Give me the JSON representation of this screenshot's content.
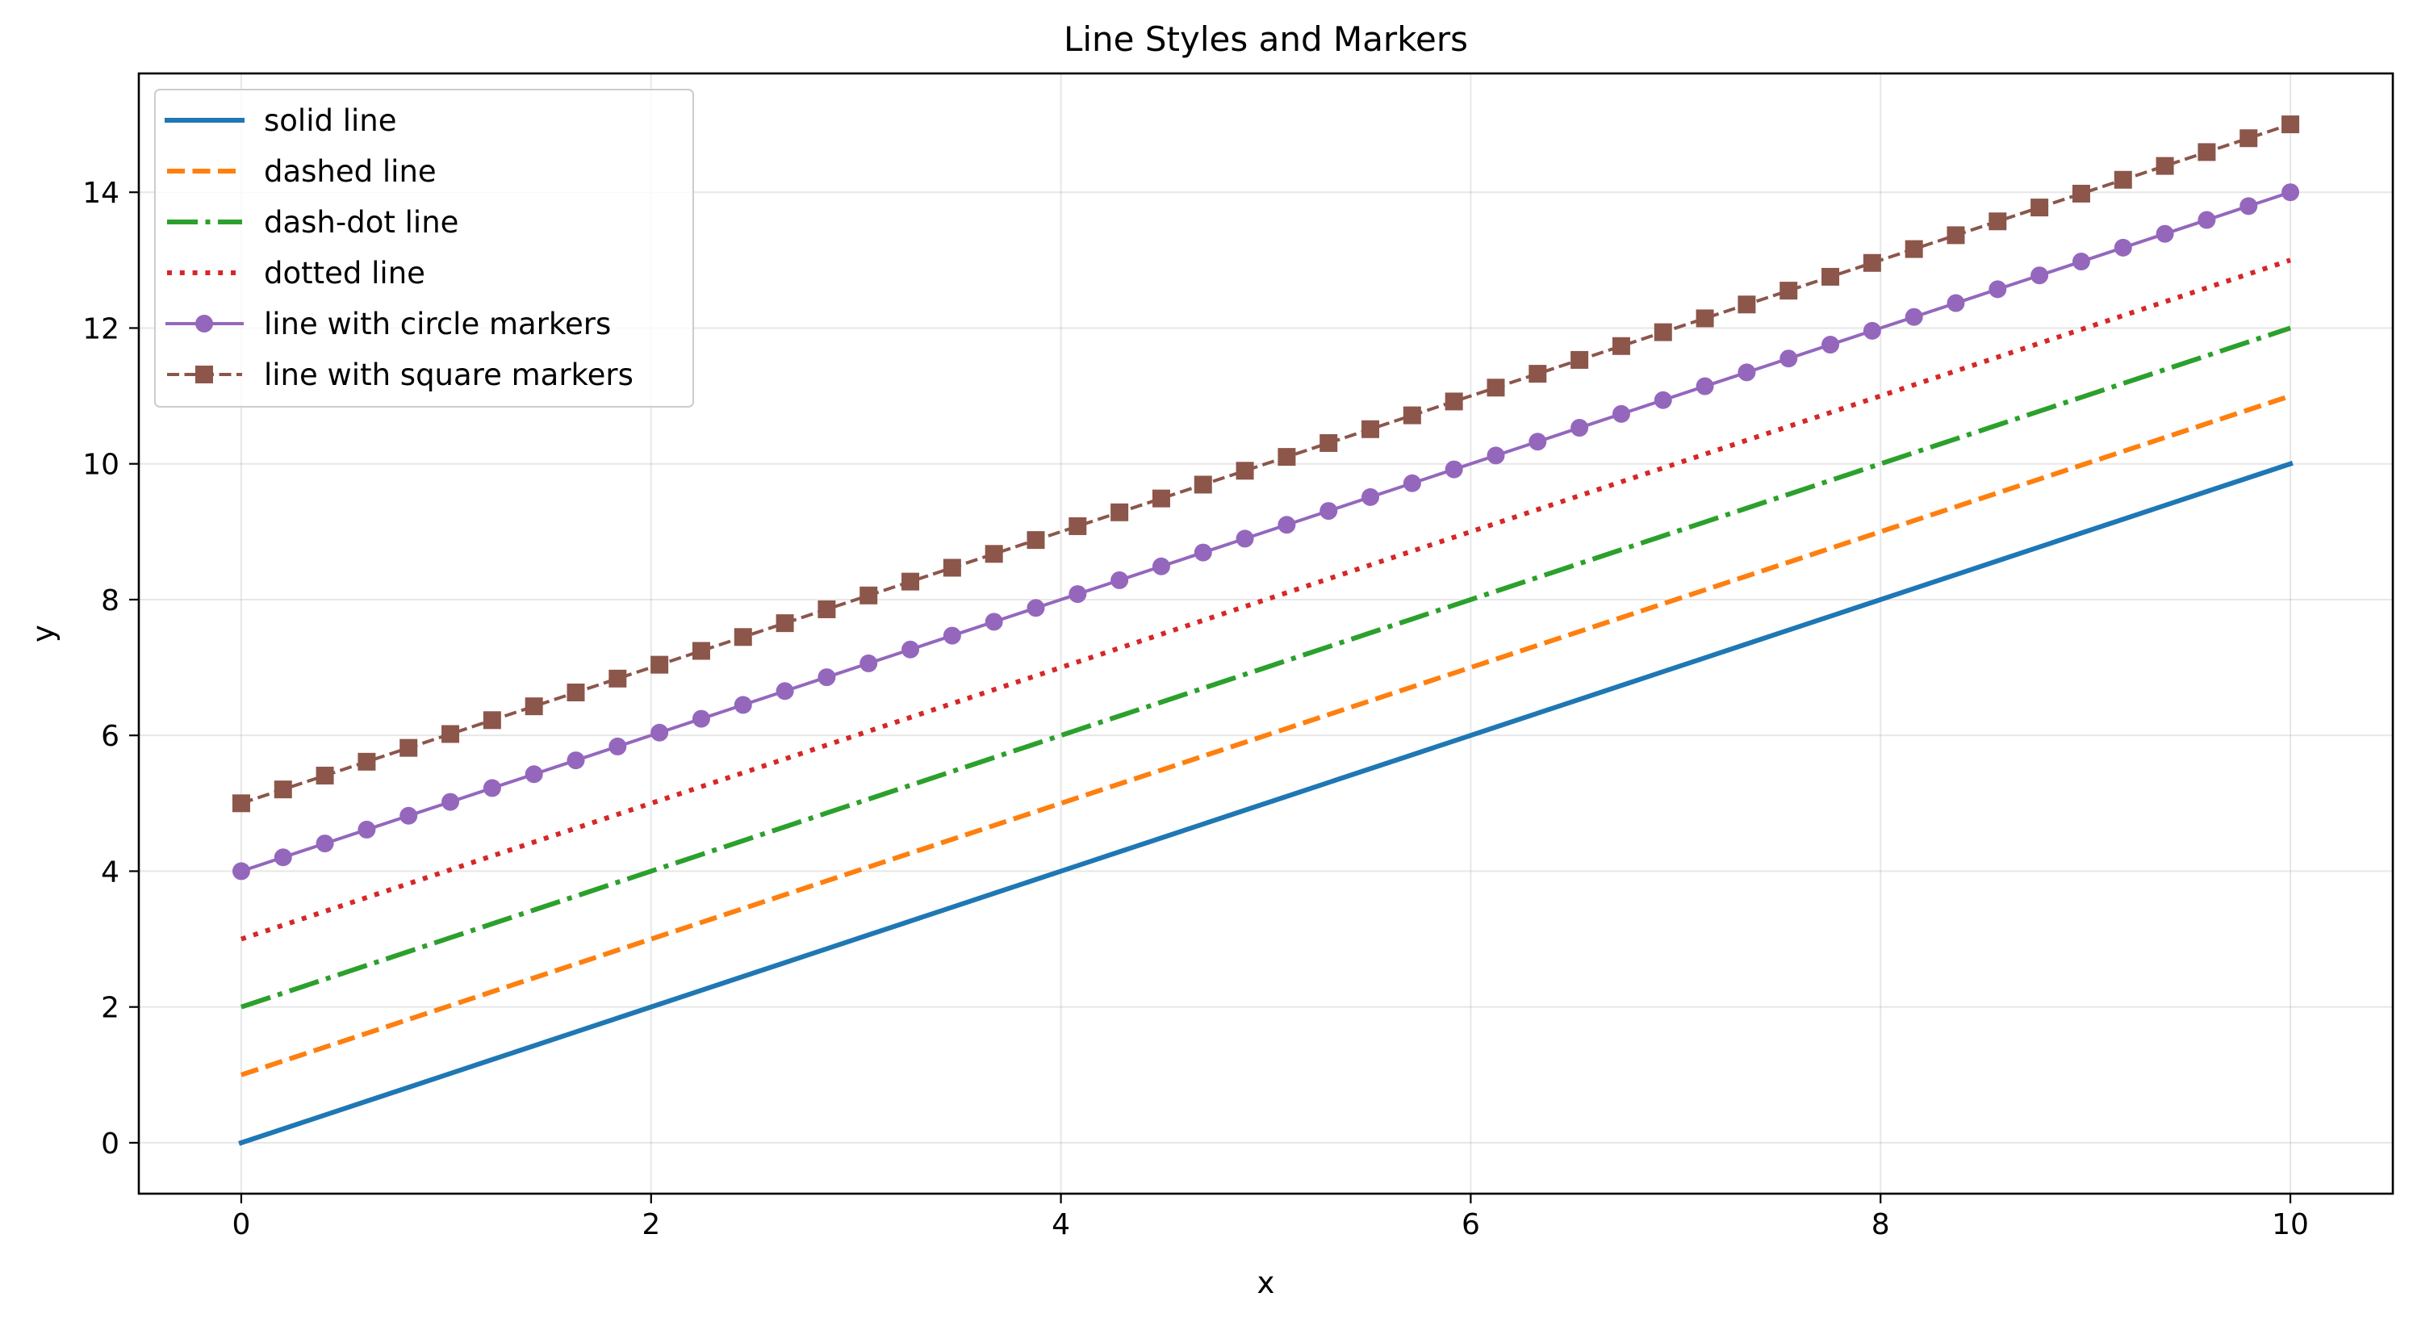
{
  "chart_data": {
    "type": "line",
    "title": "Line Styles and Markers",
    "xlabel": "x",
    "ylabel": "y",
    "xlim": [
      -0.5,
      10.5
    ],
    "ylim": [
      -0.75,
      15.75
    ],
    "xticks": [
      0,
      2,
      4,
      6,
      8,
      10
    ],
    "yticks": [
      0,
      2,
      4,
      6,
      8,
      10,
      12,
      14
    ],
    "grid": true,
    "legend_position": "upper left",
    "x_range": [
      0,
      10
    ],
    "num_points": 50,
    "series": [
      {
        "name": "solid line",
        "color": "#1f77b4",
        "style": "solid",
        "marker": "none",
        "intercept": 0,
        "slope": 1
      },
      {
        "name": "dashed line",
        "color": "#ff7f0e",
        "style": "dashed",
        "marker": "none",
        "intercept": 1,
        "slope": 1
      },
      {
        "name": "dash-dot line",
        "color": "#2ca02c",
        "style": "dashdot",
        "marker": "none",
        "intercept": 2,
        "slope": 1
      },
      {
        "name": "dotted line",
        "color": "#d62728",
        "style": "dotted",
        "marker": "none",
        "intercept": 3,
        "slope": 1
      },
      {
        "name": "line with circle markers",
        "color": "#9467bd",
        "style": "solid",
        "marker": "circle",
        "intercept": 4,
        "slope": 1
      },
      {
        "name": "line with square markers",
        "color": "#8c564b",
        "style": "dashed",
        "marker": "square",
        "intercept": 5,
        "slope": 1
      }
    ]
  }
}
